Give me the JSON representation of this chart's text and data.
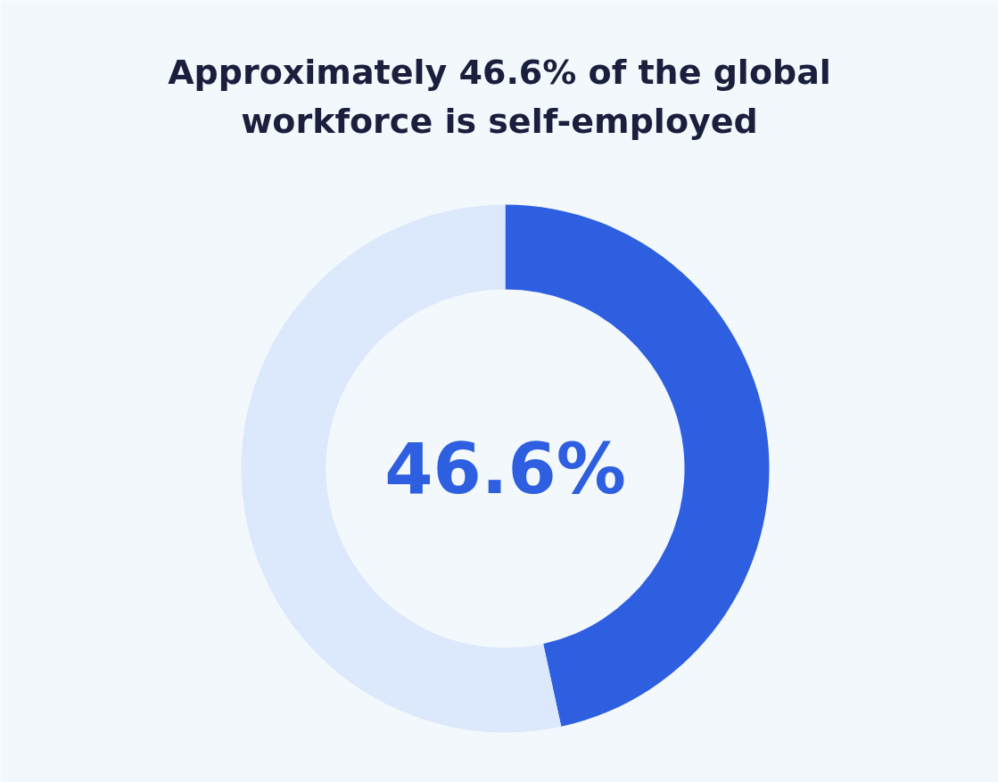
{
  "chart_data": {
    "type": "donut",
    "title": "Approximately 46.6% of the global workforce is self-employed",
    "categories": [
      null,
      null
    ],
    "values": [
      46.6,
      53.4
    ],
    "colors": [
      "#2d5fe0",
      "#dce8fb"
    ],
    "annotations": [
      "46.6%"
    ]
  }
}
